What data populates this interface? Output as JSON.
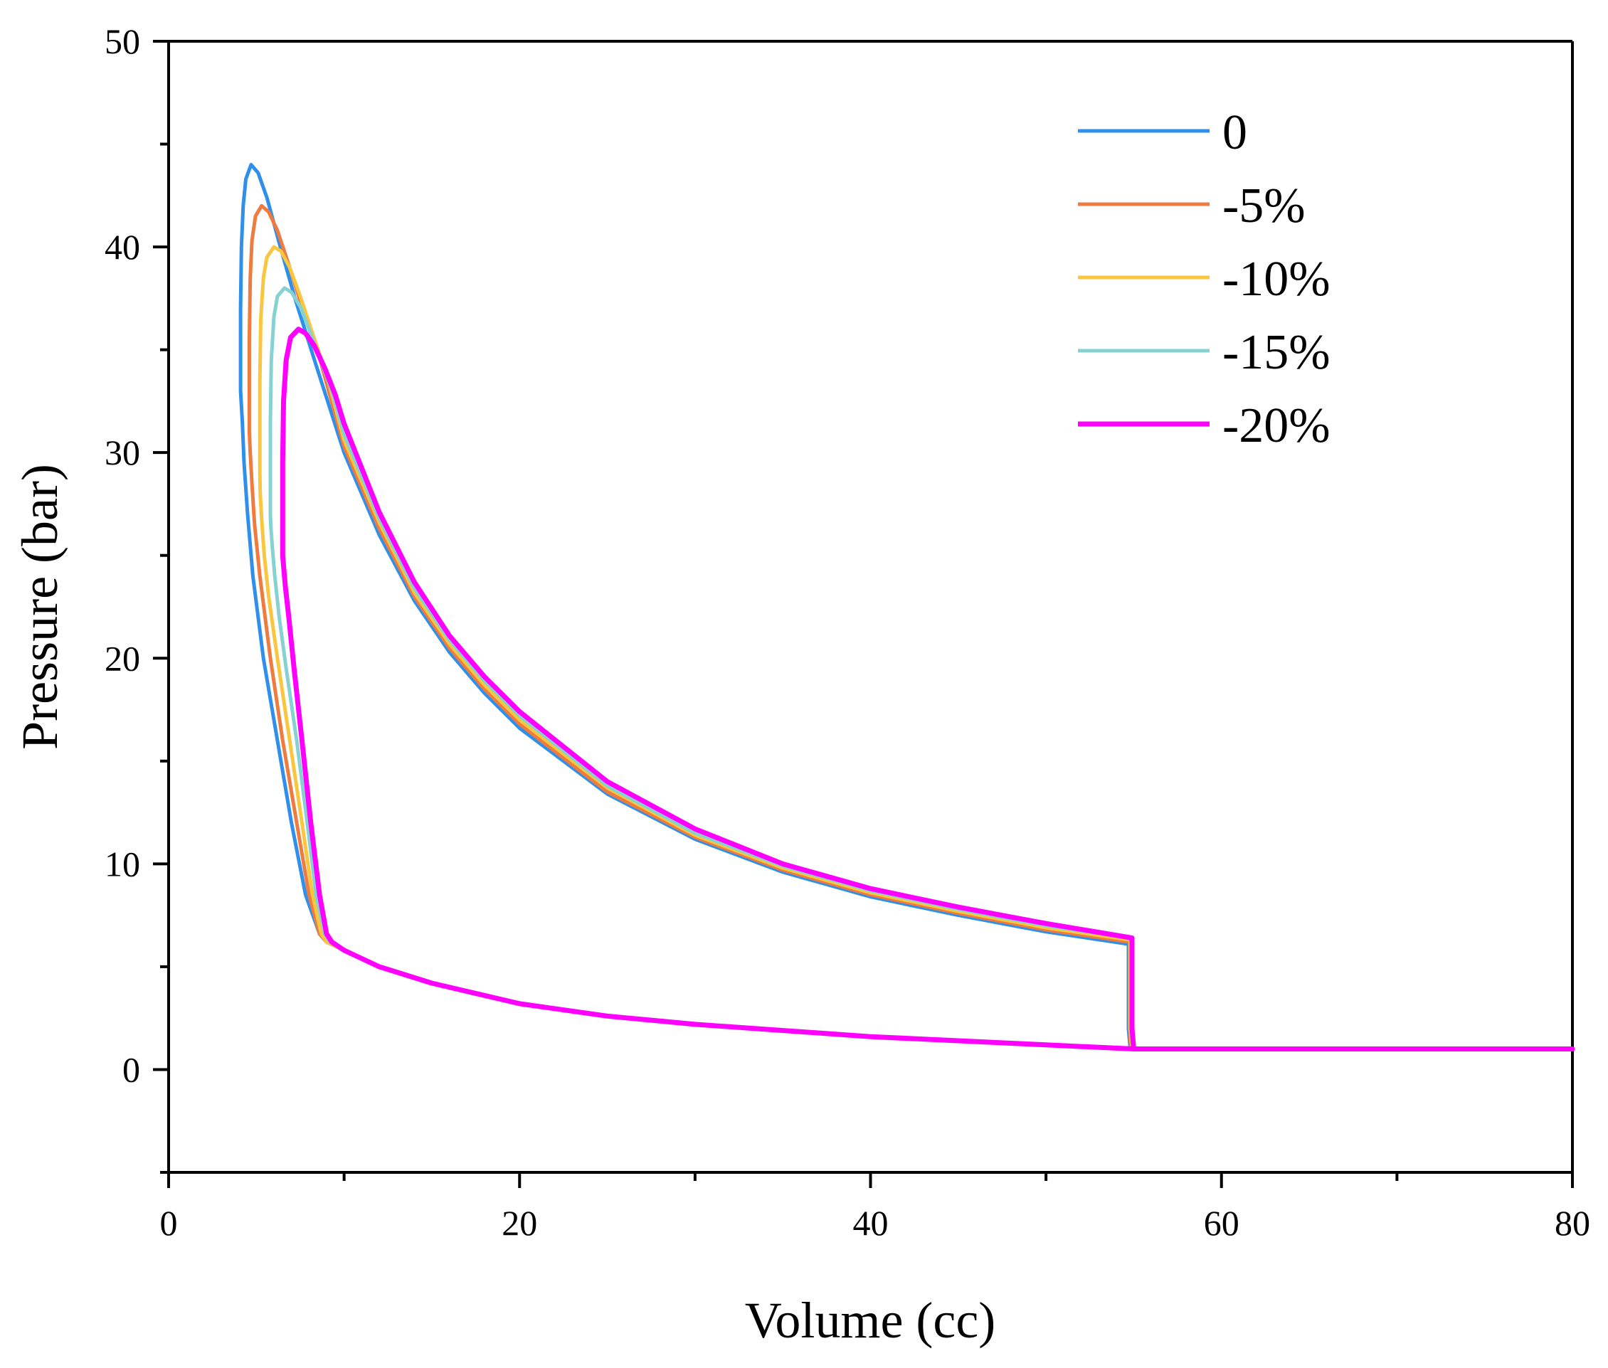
{
  "chart_data": {
    "type": "line",
    "title": "",
    "xlabel": "Volume (cc)",
    "ylabel": "Pressure (bar)",
    "xlim": [
      0,
      80
    ],
    "ylim": [
      -5,
      50
    ],
    "xticks": [
      0,
      20,
      40,
      60,
      80
    ],
    "yticks": [
      0,
      10,
      20,
      30,
      40,
      50
    ],
    "xticks_minor": [
      10,
      30,
      50,
      70
    ],
    "yticks_minor": [
      -5,
      5,
      15,
      25,
      35,
      45
    ],
    "grid": false,
    "legend_position": "top-right",
    "series": [
      {
        "name": "0",
        "color": "#2f8fea",
        "peak": [
          4.7,
          44.0
        ],
        "x": [
          4.1,
          4.1,
          4.15,
          4.25,
          4.4,
          4.7,
          5.1,
          5.6,
          6.3,
          7.2,
          8.2,
          10,
          12,
          14,
          16,
          18,
          20,
          25,
          30,
          35,
          40,
          45,
          50,
          54.7,
          54.7,
          54.8,
          55.2,
          80,
          80,
          55,
          50,
          40,
          30,
          25,
          20,
          15,
          12,
          10,
          9,
          8.6,
          7.8,
          7.0,
          6.2,
          5.4,
          4.8,
          4.5,
          4.3,
          4.2,
          4.1
        ],
        "y": [
          33,
          37,
          40,
          42,
          43.3,
          44.0,
          43.6,
          42.4,
          40.2,
          37.5,
          34.8,
          30.0,
          26.0,
          22.8,
          20.3,
          18.3,
          16.6,
          13.4,
          11.2,
          9.6,
          8.4,
          7.5,
          6.7,
          6.1,
          2.0,
          1.0,
          1.0,
          1.0,
          1.0,
          1.0,
          1.2,
          1.6,
          2.2,
          2.6,
          3.2,
          4.2,
          5.0,
          5.8,
          6.2,
          6.6,
          8.5,
          12,
          16,
          20,
          24,
          27,
          29.5,
          31.5,
          33
        ]
      },
      {
        "name": "-5%",
        "color": "#f07b3f",
        "peak": [
          5.3,
          42.0
        ],
        "x": [
          4.6,
          4.6,
          4.65,
          4.75,
          4.95,
          5.3,
          5.7,
          6.2,
          6.9,
          7.7,
          8.6,
          10,
          12,
          14,
          16,
          18,
          20,
          25,
          30,
          35,
          40,
          45,
          50,
          54.75,
          54.75,
          54.85,
          55.2,
          80,
          80,
          55,
          50,
          40,
          30,
          25,
          20,
          15,
          12,
          10,
          9,
          8.6,
          8.0,
          7.3,
          6.5,
          5.8,
          5.2,
          4.9,
          4.75,
          4.65,
          4.6
        ],
        "y": [
          31,
          35.5,
          38.5,
          40.3,
          41.5,
          42.0,
          41.7,
          40.8,
          39.0,
          36.8,
          34.6,
          30.3,
          26.3,
          23.0,
          20.5,
          18.5,
          16.8,
          13.5,
          11.3,
          9.7,
          8.5,
          7.6,
          6.8,
          6.2,
          2.0,
          1.0,
          1.0,
          1.0,
          1.0,
          1.0,
          1.2,
          1.6,
          2.2,
          2.6,
          3.2,
          4.2,
          5.0,
          5.8,
          6.2,
          6.6,
          8.5,
          12,
          16,
          20,
          24,
          26.5,
          28.5,
          30,
          31
        ]
      },
      {
        "name": "-10%",
        "color": "#f9c640",
        "peak": [
          6.0,
          40.0
        ],
        "x": [
          5.2,
          5.2,
          5.25,
          5.4,
          5.6,
          6.0,
          6.4,
          6.9,
          7.5,
          8.2,
          9.0,
          10,
          12,
          14,
          16,
          18,
          20,
          25,
          30,
          35,
          40,
          45,
          50,
          54.8,
          54.8,
          54.9,
          55.2,
          80,
          80,
          55,
          50,
          40,
          30,
          25,
          20,
          15,
          12,
          10,
          9,
          8.7,
          8.2,
          7.6,
          6.9,
          6.2,
          5.7,
          5.45,
          5.3,
          5.22,
          5.2
        ],
        "y": [
          29,
          33.5,
          36.5,
          38.5,
          39.5,
          40.0,
          39.8,
          39.0,
          37.6,
          35.8,
          33.8,
          30.6,
          26.6,
          23.2,
          20.7,
          18.7,
          17.0,
          13.7,
          11.4,
          9.8,
          8.6,
          7.7,
          6.9,
          6.3,
          2.0,
          1.0,
          1.0,
          1.0,
          1.0,
          1.0,
          1.2,
          1.6,
          2.2,
          2.6,
          3.2,
          4.2,
          5.0,
          5.8,
          6.2,
          6.6,
          8.5,
          12,
          16,
          20,
          23,
          25,
          26.8,
          28,
          29
        ]
      },
      {
        "name": "-15%",
        "color": "#86d1d1",
        "peak": [
          6.6,
          38.0
        ],
        "x": [
          5.8,
          5.8,
          5.85,
          6.0,
          6.2,
          6.6,
          7.0,
          7.5,
          8.0,
          8.6,
          9.3,
          10,
          12,
          14,
          16,
          18,
          20,
          25,
          30,
          35,
          40,
          45,
          50,
          54.85,
          54.85,
          54.95,
          55.2,
          80,
          80,
          55,
          50,
          40,
          30,
          25,
          20,
          15,
          12,
          10,
          9.2,
          8.9,
          8.4,
          7.9,
          7.3,
          6.7,
          6.3,
          6.05,
          5.9,
          5.82,
          5.8
        ],
        "y": [
          27,
          31.5,
          34.5,
          36.6,
          37.6,
          38.0,
          37.8,
          37.1,
          36.0,
          34.6,
          33.0,
          30.9,
          26.8,
          23.4,
          20.9,
          18.9,
          17.2,
          13.8,
          11.5,
          9.9,
          8.7,
          7.8,
          7.0,
          6.4,
          2.0,
          1.0,
          1.0,
          1.0,
          1.0,
          1.0,
          1.2,
          1.6,
          2.2,
          2.6,
          3.2,
          4.2,
          5.0,
          5.8,
          6.2,
          6.6,
          8.5,
          12,
          16,
          19.5,
          22,
          24,
          25.5,
          26.5,
          27
        ]
      },
      {
        "name": "-20%",
        "color": "#ff00ff",
        "peak": [
          7.4,
          36.0
        ],
        "x": [
          6.5,
          6.5,
          6.55,
          6.7,
          6.95,
          7.4,
          7.8,
          8.3,
          8.9,
          9.5,
          10,
          12,
          14,
          16,
          18,
          20,
          25,
          30,
          35,
          40,
          45,
          50,
          54.9,
          54.9,
          55.0,
          55.2,
          80,
          80,
          55,
          50,
          40,
          30,
          25,
          20,
          15,
          12,
          10,
          9.3,
          9.0,
          8.6,
          8.1,
          7.6,
          7.15,
          6.85,
          6.65,
          6.55,
          6.5
        ],
        "y": [
          25,
          29.5,
          32.5,
          34.5,
          35.6,
          36.0,
          35.8,
          35.2,
          34.1,
          32.8,
          31.4,
          27.1,
          23.7,
          21.1,
          19.1,
          17.4,
          14.0,
          11.7,
          10.0,
          8.8,
          7.9,
          7.1,
          6.4,
          2.0,
          1.0,
          1.0,
          1.0,
          1.0,
          1.0,
          1.2,
          1.6,
          2.2,
          2.6,
          3.2,
          4.2,
          5.0,
          5.8,
          6.2,
          6.6,
          8.5,
          12,
          16,
          19.5,
          22,
          23.5,
          24.5,
          25
        ]
      }
    ]
  }
}
